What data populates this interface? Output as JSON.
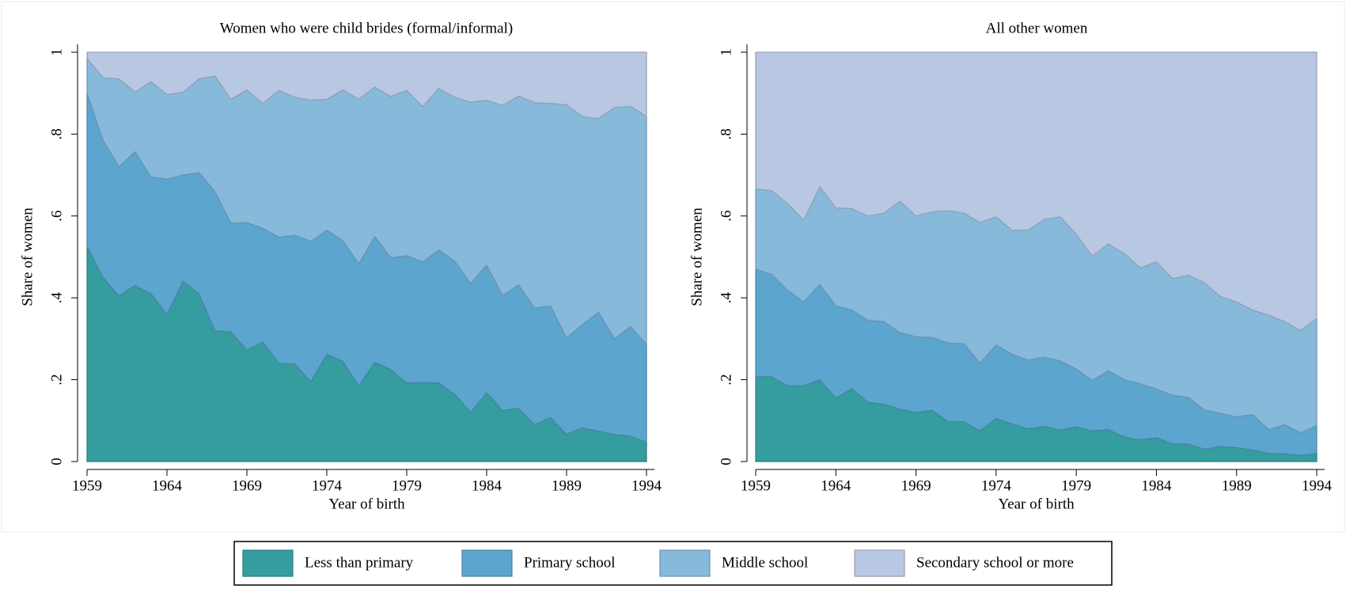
{
  "chart_data": [
    {
      "type": "area",
      "stacked": true,
      "title": "Women who were child brides (formal/informal)",
      "x_label": "Year of birth",
      "y_label": "Share of women",
      "x": [
        1959,
        1960,
        1961,
        1962,
        1963,
        1964,
        1965,
        1966,
        1967,
        1968,
        1969,
        1970,
        1971,
        1972,
        1973,
        1974,
        1975,
        1976,
        1977,
        1978,
        1979,
        1980,
        1981,
        1982,
        1983,
        1984,
        1985,
        1986,
        1987,
        1988,
        1989,
        1990,
        1991,
        1992,
        1993,
        1994
      ],
      "xlim": [
        1959,
        1994
      ],
      "xticks": [
        1959,
        1964,
        1969,
        1974,
        1979,
        1984,
        1989,
        1994
      ],
      "ylim": [
        0,
        1
      ],
      "yticks": [
        0,
        {
          "value": 0.2,
          "label": ".2"
        },
        {
          "value": 0.4,
          "label": ".4"
        },
        {
          "value": 0.6,
          "label": ".6"
        },
        {
          "value": 0.8,
          "label": ".8"
        },
        1
      ],
      "grid": true,
      "series": [
        {
          "name": "Less than primary",
          "color": "#359c9f",
          "values": [
            0.525,
            0.45,
            0.405,
            0.43,
            0.41,
            0.36,
            0.44,
            0.41,
            0.32,
            0.317,
            0.272,
            0.292,
            0.24,
            0.238,
            0.195,
            0.262,
            0.245,
            0.185,
            0.243,
            0.225,
            0.192,
            0.193,
            0.192,
            0.165,
            0.12,
            0.168,
            0.125,
            0.13,
            0.09,
            0.107,
            0.067,
            0.082,
            0.074,
            0.066,
            0.062,
            0.047
          ]
        },
        {
          "name": "Primary school",
          "color": "#5ba5cf",
          "values": [
            0.375,
            0.335,
            0.315,
            0.327,
            0.285,
            0.33,
            0.26,
            0.296,
            0.34,
            0.265,
            0.312,
            0.278,
            0.308,
            0.315,
            0.343,
            0.303,
            0.295,
            0.298,
            0.307,
            0.273,
            0.311,
            0.295,
            0.325,
            0.325,
            0.315,
            0.312,
            0.28,
            0.302,
            0.285,
            0.273,
            0.235,
            0.253,
            0.291,
            0.234,
            0.268,
            0.24
          ]
        },
        {
          "name": "Middle school",
          "color": "#86b9da",
          "values": [
            0.085,
            0.153,
            0.215,
            0.146,
            0.233,
            0.207,
            0.202,
            0.229,
            0.282,
            0.303,
            0.324,
            0.305,
            0.359,
            0.337,
            0.345,
            0.32,
            0.368,
            0.402,
            0.365,
            0.394,
            0.404,
            0.379,
            0.395,
            0.4,
            0.443,
            0.403,
            0.465,
            0.461,
            0.502,
            0.495,
            0.57,
            0.508,
            0.473,
            0.565,
            0.538,
            0.556
          ]
        },
        {
          "name": "Secondary school or more",
          "color": "#b8c8e2",
          "values": [
            0.015,
            0.062,
            0.065,
            0.097,
            0.072,
            0.103,
            0.098,
            0.065,
            0.058,
            0.115,
            0.092,
            0.125,
            0.093,
            0.11,
            0.117,
            0.115,
            0.092,
            0.115,
            0.085,
            0.108,
            0.093,
            0.133,
            0.088,
            0.11,
            0.122,
            0.117,
            0.13,
            0.107,
            0.123,
            0.125,
            0.128,
            0.157,
            0.162,
            0.135,
            0.132,
            0.157
          ]
        }
      ]
    },
    {
      "type": "area",
      "stacked": true,
      "title": "All other women",
      "x_label": "Year of birth",
      "y_label": "Share of women",
      "x": [
        1959,
        1960,
        1961,
        1962,
        1963,
        1964,
        1965,
        1966,
        1967,
        1968,
        1969,
        1970,
        1971,
        1972,
        1973,
        1974,
        1975,
        1976,
        1977,
        1978,
        1979,
        1980,
        1981,
        1982,
        1983,
        1984,
        1985,
        1986,
        1987,
        1988,
        1989,
        1990,
        1991,
        1992,
        1993,
        1994
      ],
      "xlim": [
        1959,
        1994
      ],
      "xticks": [
        1959,
        1964,
        1969,
        1974,
        1979,
        1984,
        1989,
        1994
      ],
      "ylim": [
        0,
        1
      ],
      "yticks": [
        0,
        {
          "value": 0.2,
          "label": ".2"
        },
        {
          "value": 0.4,
          "label": ".4"
        },
        {
          "value": 0.6,
          "label": ".6"
        },
        {
          "value": 0.8,
          "label": ".8"
        },
        1
      ],
      "grid": true,
      "series": [
        {
          "color": "#359c9f",
          "values": [
            0.208,
            0.207,
            0.185,
            0.185,
            0.2,
            0.155,
            0.178,
            0.145,
            0.14,
            0.128,
            0.12,
            0.125,
            0.098,
            0.097,
            0.075,
            0.105,
            0.092,
            0.08,
            0.086,
            0.077,
            0.085,
            0.075,
            0.078,
            0.06,
            0.053,
            0.058,
            0.043,
            0.043,
            0.03,
            0.037,
            0.034,
            0.028,
            0.02,
            0.019,
            0.015,
            0.02
          ]
        },
        {
          "color": "#5ba5cf",
          "values": [
            0.262,
            0.25,
            0.233,
            0.205,
            0.233,
            0.225,
            0.192,
            0.2,
            0.202,
            0.187,
            0.185,
            0.178,
            0.192,
            0.191,
            0.165,
            0.18,
            0.17,
            0.168,
            0.169,
            0.169,
            0.141,
            0.123,
            0.144,
            0.14,
            0.137,
            0.119,
            0.119,
            0.114,
            0.096,
            0.081,
            0.075,
            0.087,
            0.058,
            0.071,
            0.055,
            0.068
          ]
        },
        {
          "color": "#86b9da",
          "values": [
            0.196,
            0.205,
            0.212,
            0.2,
            0.239,
            0.24,
            0.248,
            0.255,
            0.265,
            0.321,
            0.295,
            0.307,
            0.323,
            0.319,
            0.344,
            0.313,
            0.303,
            0.317,
            0.337,
            0.352,
            0.329,
            0.304,
            0.31,
            0.308,
            0.283,
            0.311,
            0.285,
            0.298,
            0.311,
            0.285,
            0.281,
            0.255,
            0.28,
            0.252,
            0.25,
            0.262
          ]
        },
        {
          "color": "#b8c8e2",
          "values": [
            0.334,
            0.338,
            0.37,
            0.41,
            0.328,
            0.38,
            0.382,
            0.4,
            0.393,
            0.364,
            0.4,
            0.39,
            0.387,
            0.393,
            0.416,
            0.402,
            0.435,
            0.435,
            0.408,
            0.402,
            0.445,
            0.498,
            0.468,
            0.492,
            0.527,
            0.512,
            0.553,
            0.545,
            0.563,
            0.597,
            0.61,
            0.63,
            0.642,
            0.658,
            0.68,
            0.65
          ]
        }
      ]
    }
  ]
}
